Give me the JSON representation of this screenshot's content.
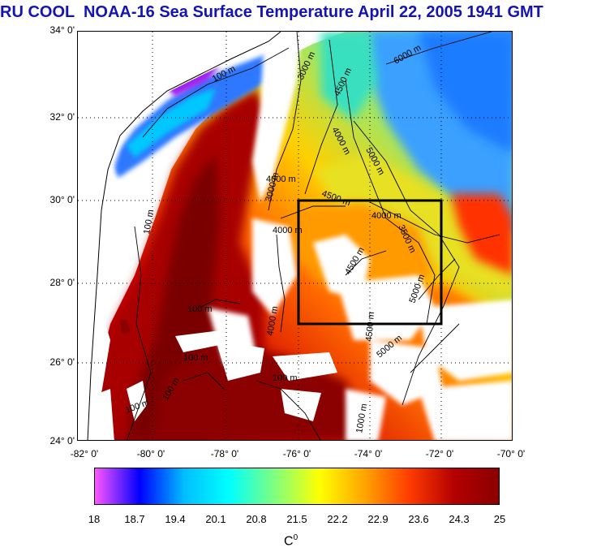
{
  "title": "RU COOL  NOAA-16 Sea Surface Temperature April 22, 2005 1941 GMT",
  "latitude_labels": [
    "34° 0'",
    "32° 0'",
    "30° 0'",
    "28° 0'",
    "26° 0'",
    "24° 0'"
  ],
  "longitude_labels": [
    "-82° 0'",
    "-80° 0'",
    "-78° 0'",
    "-76° 0'",
    "-74° 0'",
    "-72° 0'",
    "-70° 0'"
  ],
  "contour_labels": [
    "100 m",
    "3000 m",
    "4500 m",
    "6000 m",
    "4000 m",
    "5000 m",
    "4000 m",
    "3000 m",
    "4500 m",
    "4000 m",
    "3500 m",
    "4000 m",
    "4500 m",
    "5000 m",
    "4500 m",
    "5000 m",
    "100 m",
    "100 m",
    "4000 m",
    "100 m",
    "100 m",
    "100 m",
    "100 m",
    "1000 m"
  ],
  "colorbar": {
    "ticks": [
      "18",
      "18.7",
      "19.4",
      "20.1",
      "20.8",
      "21.5",
      "22.2",
      "22.9",
      "23.6",
      "24.3",
      "25"
    ],
    "min": 18,
    "max": 25,
    "unit_base": "C",
    "unit_sup": "0",
    "colors": [
      "#ff55ff",
      "#0000ff",
      "#00bfff",
      "#00ffff",
      "#7fff7f",
      "#ffff00",
      "#ffa500",
      "#ff3c00",
      "#b40000",
      "#8b0000"
    ]
  },
  "box_region": {
    "lon": [
      -76,
      -72
    ],
    "lat": [
      27,
      30
    ]
  }
}
